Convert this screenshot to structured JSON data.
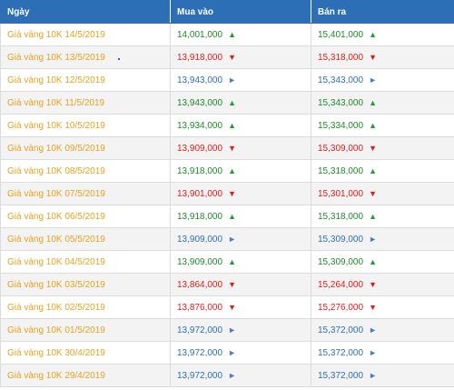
{
  "headers": [
    "Ngày",
    "Mua vào",
    "Bán ra"
  ],
  "arrows": {
    "up": "▲",
    "down": "▼",
    "same": "►"
  },
  "colors": {
    "header_bg": "#2d6fb7",
    "date_text": "#e6a21e",
    "up": "#1e8a2a",
    "down": "#e21b1b",
    "same": "#2d6fb7"
  },
  "rows": [
    {
      "date": "Giá vàng 10K 14/5/2019",
      "buy": "14,001,000",
      "buy_trend": "up",
      "sell": "15,401,000",
      "sell_trend": "up"
    },
    {
      "date": "Giá vàng 10K 13/5/2019",
      "buy": "13,918,000",
      "buy_trend": "down",
      "sell": "15,318,000",
      "sell_trend": "down"
    },
    {
      "date": "Giá vàng 10K 12/5/2019",
      "buy": "13,943,000",
      "buy_trend": "same",
      "sell": "15,343,000",
      "sell_trend": "same"
    },
    {
      "date": "Giá vàng 10K 11/5/2019",
      "buy": "13,943,000",
      "buy_trend": "up",
      "sell": "15,343,000",
      "sell_trend": "up"
    },
    {
      "date": "Giá vàng 10K 10/5/2019",
      "buy": "13,934,000",
      "buy_trend": "up",
      "sell": "15,334,000",
      "sell_trend": "up"
    },
    {
      "date": "Giá vàng 10K 09/5/2019",
      "buy": "13,909,000",
      "buy_trend": "down",
      "sell": "15,309,000",
      "sell_trend": "down"
    },
    {
      "date": "Giá vàng 10K 08/5/2019",
      "buy": "13,918,000",
      "buy_trend": "up",
      "sell": "15,318,000",
      "sell_trend": "up"
    },
    {
      "date": "Giá vàng 10K 07/5/2019",
      "buy": "13,901,000",
      "buy_trend": "down",
      "sell": "15,301,000",
      "sell_trend": "down"
    },
    {
      "date": "Giá vàng 10K 06/5/2019",
      "buy": "13,918,000",
      "buy_trend": "up",
      "sell": "15,318,000",
      "sell_trend": "up"
    },
    {
      "date": "Giá vàng 10K 05/5/2019",
      "buy": "13,909,000",
      "buy_trend": "same",
      "sell": "15,309,000",
      "sell_trend": "same"
    },
    {
      "date": "Giá vàng 10K 04/5/2019",
      "buy": "13,909,000",
      "buy_trend": "up",
      "sell": "15,309,000",
      "sell_trend": "up"
    },
    {
      "date": "Giá vàng 10K 03/5/2019",
      "buy": "13,864,000",
      "buy_trend": "down",
      "sell": "15,264,000",
      "sell_trend": "down"
    },
    {
      "date": "Giá vàng 10K 02/5/2019",
      "buy": "13,876,000",
      "buy_trend": "down",
      "sell": "15,276,000",
      "sell_trend": "down"
    },
    {
      "date": "Giá vàng 10K 01/5/2019",
      "buy": "13,972,000",
      "buy_trend": "same",
      "sell": "15,372,000",
      "sell_trend": "same"
    },
    {
      "date": "Giá vàng 10K 30/4/2019",
      "buy": "13,972,000",
      "buy_trend": "same",
      "sell": "15,372,000",
      "sell_trend": "same"
    },
    {
      "date": "Giá vàng 10K 29/4/2019",
      "buy": "13,972,000",
      "buy_trend": "same",
      "sell": "15,372,000",
      "sell_trend": "same"
    }
  ]
}
